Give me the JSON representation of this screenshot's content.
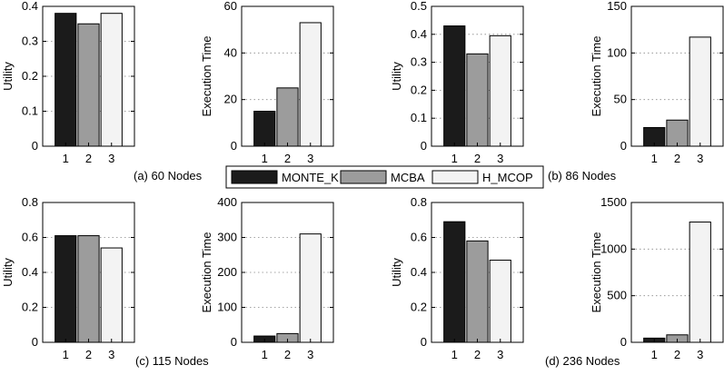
{
  "colors": {
    "series": [
      "#1b1b1b",
      "#9c9c9c",
      "#f3f3f3"
    ],
    "grid": "#888888"
  },
  "legend": [
    "MONTE_K",
    "MCBA",
    "H_MCOP"
  ],
  "captions": [
    "(a) 60 Nodes",
    "(b) 86 Nodes",
    "(c) 115 Nodes",
    "(d) 236 Nodes"
  ],
  "chart_data": [
    {
      "type": "bar",
      "panel": "a",
      "categories": [
        "1",
        "2",
        "3"
      ],
      "values": [
        0.38,
        0.35,
        0.38
      ],
      "ylabel": "Utility",
      "ylim": [
        0,
        0.4
      ],
      "yticks": [
        "0",
        "0.1",
        "0.2",
        "0.3",
        "0.4"
      ],
      "grid": true
    },
    {
      "type": "bar",
      "panel": "a",
      "categories": [
        "1",
        "2",
        "3"
      ],
      "values": [
        15,
        25,
        53
      ],
      "ylabel": "Execution Time",
      "ylim": [
        0,
        60
      ],
      "yticks": [
        "0",
        "20",
        "40",
        "60"
      ],
      "grid": true
    },
    {
      "type": "bar",
      "panel": "b",
      "categories": [
        "1",
        "2",
        "3"
      ],
      "values": [
        0.43,
        0.33,
        0.395
      ],
      "ylabel": "Utility",
      "ylim": [
        0,
        0.5
      ],
      "yticks": [
        "0",
        "0.1",
        "0.2",
        "0.3",
        "0.4",
        "0.5"
      ],
      "grid": true
    },
    {
      "type": "bar",
      "panel": "b",
      "categories": [
        "1",
        "2",
        "3"
      ],
      "values": [
        20,
        28,
        117
      ],
      "ylabel": "Execution Time",
      "ylim": [
        0,
        150
      ],
      "yticks": [
        "0",
        "50",
        "100",
        "150"
      ],
      "grid": true
    },
    {
      "type": "bar",
      "panel": "c",
      "categories": [
        "1",
        "2",
        "3"
      ],
      "values": [
        0.61,
        0.61,
        0.54
      ],
      "ylabel": "Utility",
      "ylim": [
        0,
        0.8
      ],
      "yticks": [
        "0",
        "0.2",
        "0.4",
        "0.6",
        "0.8"
      ],
      "grid": true
    },
    {
      "type": "bar",
      "panel": "c",
      "categories": [
        "1",
        "2",
        "3"
      ],
      "values": [
        18,
        25,
        310
      ],
      "ylabel": "Execution Time",
      "ylim": [
        0,
        400
      ],
      "yticks": [
        "0",
        "100",
        "200",
        "300",
        "400"
      ],
      "grid": true
    },
    {
      "type": "bar",
      "panel": "d",
      "categories": [
        "1",
        "2",
        "3"
      ],
      "values": [
        0.69,
        0.58,
        0.47
      ],
      "ylabel": "Utility",
      "ylim": [
        0,
        0.8
      ],
      "yticks": [
        "0",
        "0.2",
        "0.4",
        "0.6",
        "0.8"
      ],
      "grid": true
    },
    {
      "type": "bar",
      "panel": "d",
      "categories": [
        "1",
        "2",
        "3"
      ],
      "values": [
        45,
        80,
        1290
      ],
      "ylabel": "Execution Time",
      "ylim": [
        0,
        1500
      ],
      "yticks": [
        "0",
        "500",
        "1000",
        "1500"
      ],
      "grid": true
    }
  ]
}
